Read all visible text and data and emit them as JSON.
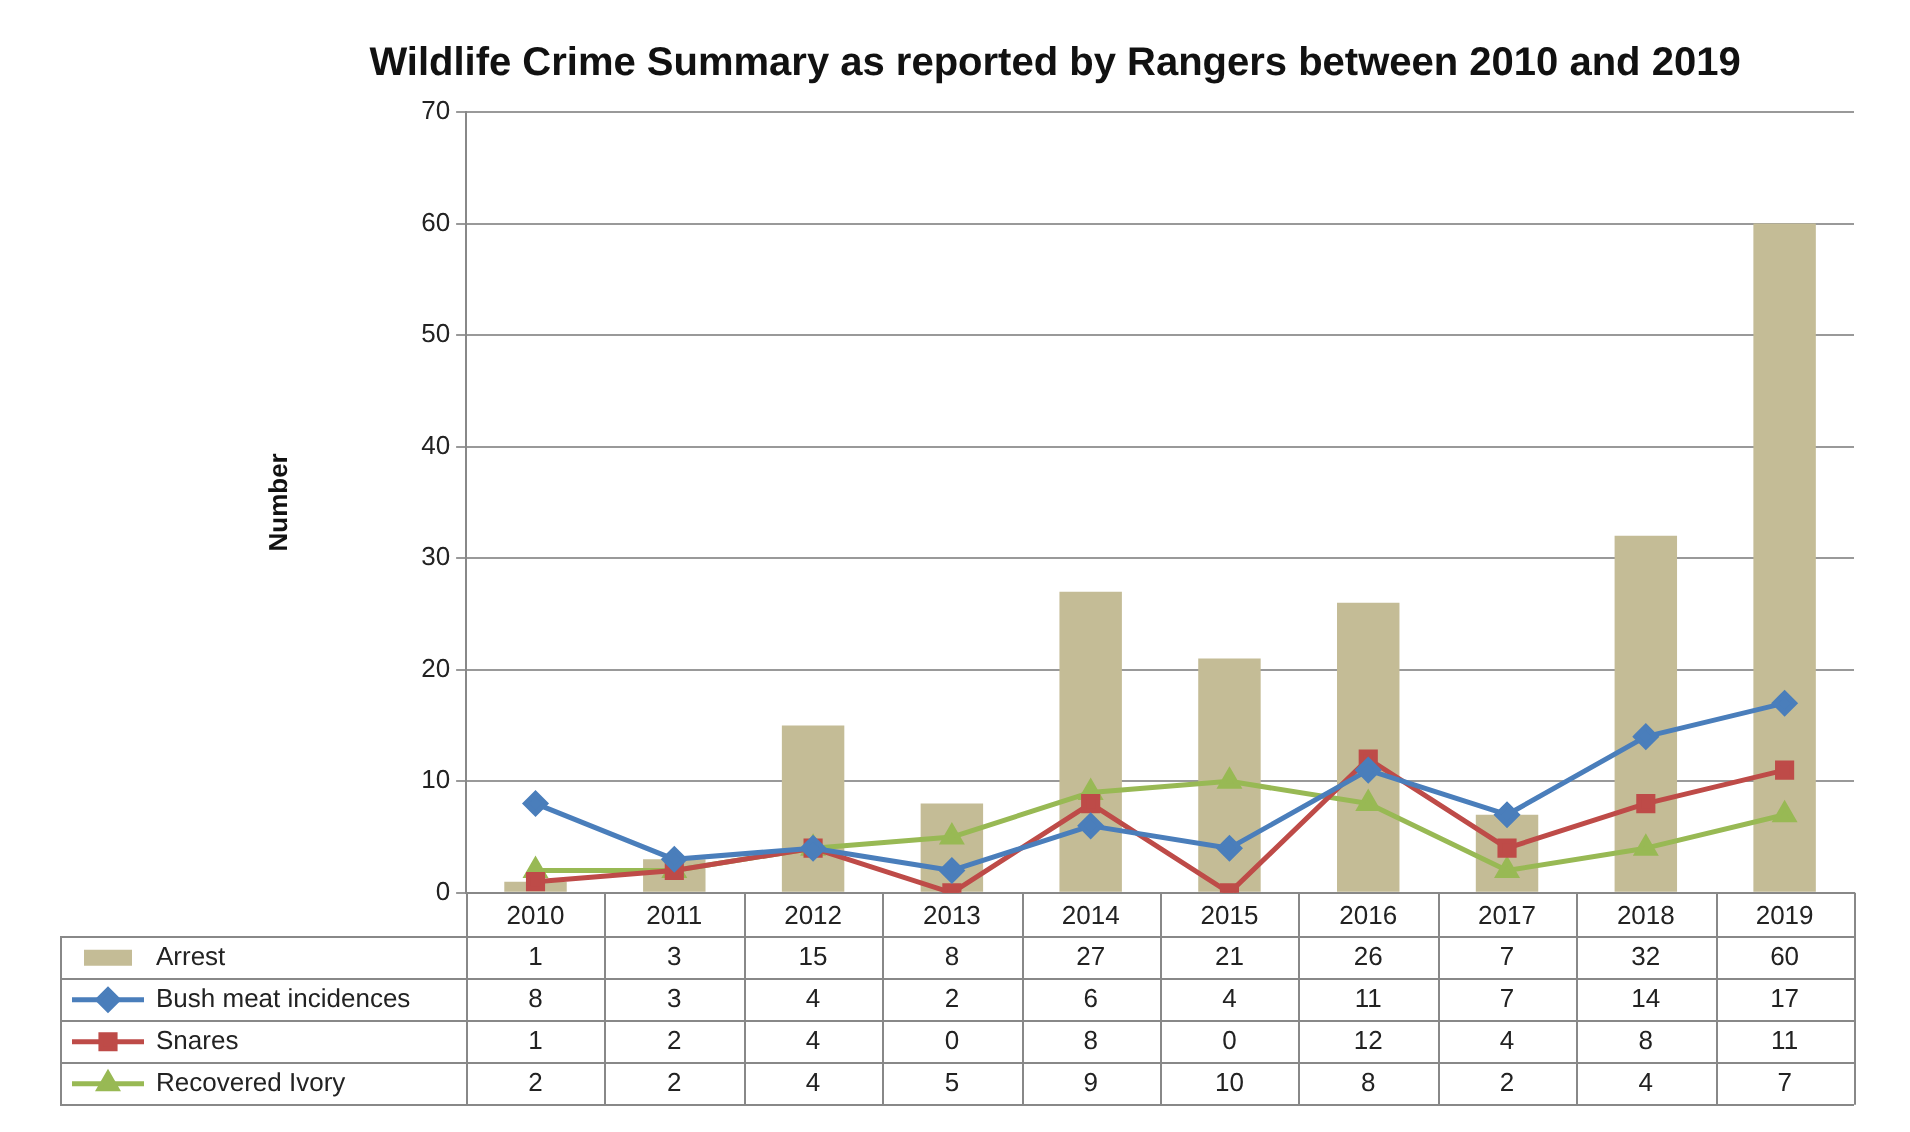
{
  "chart_data": {
    "type": "bar",
    "title": "Wildlife Crime Summary as reported by Rangers between 2010 and 2019",
    "ylabel": "Number",
    "categories": [
      "2010",
      "2011",
      "2012",
      "2013",
      "2014",
      "2015",
      "2016",
      "2017",
      "2018",
      "2019"
    ],
    "series": [
      {
        "name": "Arrest",
        "color": "#c4bc96",
        "values": [
          1,
          3,
          15,
          8,
          27,
          21,
          26,
          7,
          32,
          60
        ]
      },
      {
        "name": "Bush meat incidences",
        "type": "line",
        "marker": "diamond",
        "color": "#4a7ebb",
        "values": [
          8,
          3,
          4,
          2,
          6,
          4,
          11,
          7,
          14,
          17
        ]
      },
      {
        "name": "Snares",
        "type": "line",
        "marker": "square",
        "color": "#be4b48",
        "values": [
          1,
          2,
          4,
          0,
          8,
          0,
          12,
          4,
          8,
          11
        ]
      },
      {
        "name": "Recovered Ivory",
        "type": "line",
        "marker": "triangle",
        "color": "#98b954",
        "values": [
          2,
          2,
          4,
          5,
          9,
          10,
          8,
          2,
          4,
          7
        ]
      }
    ],
    "ylim": [
      0,
      70
    ],
    "yticks": [
      0,
      10,
      20,
      30,
      40,
      50,
      60,
      70
    ],
    "grid": "y",
    "legend": "bottom",
    "data_labels": true
  }
}
